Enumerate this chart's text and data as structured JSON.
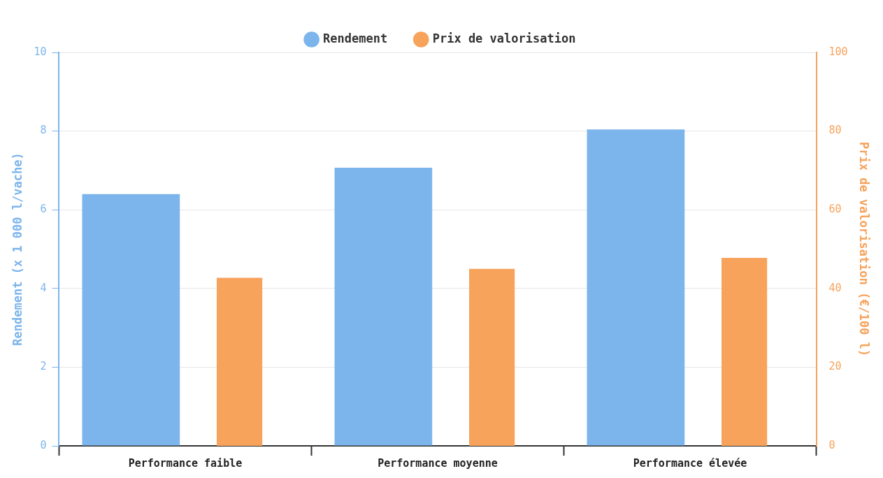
{
  "chart_data": {
    "type": "bar",
    "categories": [
      "Performance faible",
      "Performance moyenne",
      "Performance élevée"
    ],
    "ylabel": "Rendement (x 1 000 l/vache)",
    "y2label": "Prix de valorisation (€/100 l)",
    "series": [
      {
        "name": "Rendement",
        "color": "#7cb5ec",
        "values": [
          6.4,
          7.07,
          8.04
        ]
      },
      {
        "name": "Prix de valorisation",
        "color": "#f7a35c",
        "axis": "y2",
        "values": [
          42.7,
          45,
          47.8
        ]
      }
    ],
    "ylim": [
      0,
      10
    ],
    "yticks": [
      0,
      2,
      4,
      6,
      8,
      10
    ],
    "y2lim": [
      0,
      100
    ],
    "y2ticks": [
      0,
      20,
      40,
      60,
      80,
      100
    ],
    "grid": "y",
    "legend": "top"
  }
}
